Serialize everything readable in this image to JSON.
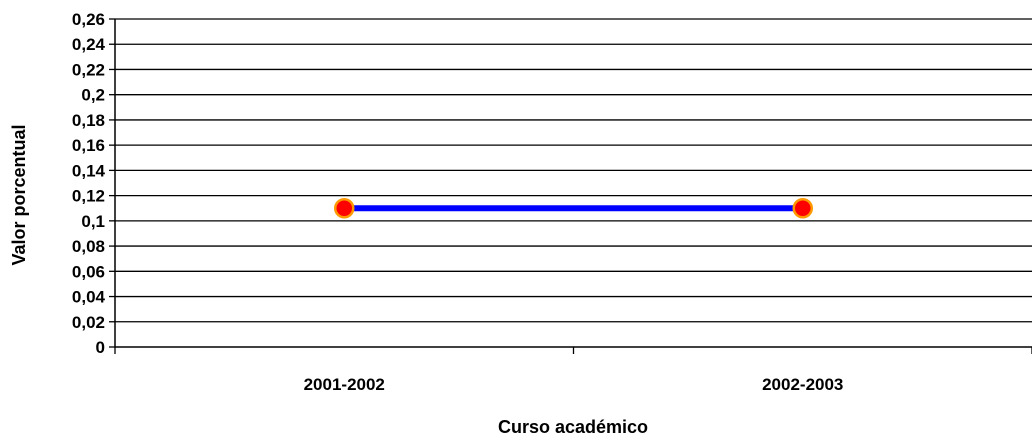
{
  "chart_data": {
    "type": "line",
    "title": "",
    "xlabel": "Curso académico",
    "ylabel": "Valor porcentual",
    "categories": [
      "2001-2002",
      "2002-2003"
    ],
    "series": [
      {
        "values": [
          0.11,
          0.11
        ]
      }
    ],
    "ylim": [
      0,
      0.26
    ],
    "yticks": [
      "0",
      "0,02",
      "0,04",
      "0,06",
      "0,08",
      "0,1",
      "0,12",
      "0,14",
      "0,16",
      "0,18",
      "0,2",
      "0,22",
      "0,24",
      "0,26"
    ],
    "grid": true,
    "legend": "none",
    "colors": {
      "line": "#0000ff",
      "marker_fill": "#ff0000",
      "marker_stroke": "#ff9900",
      "grid": "#000000"
    }
  }
}
